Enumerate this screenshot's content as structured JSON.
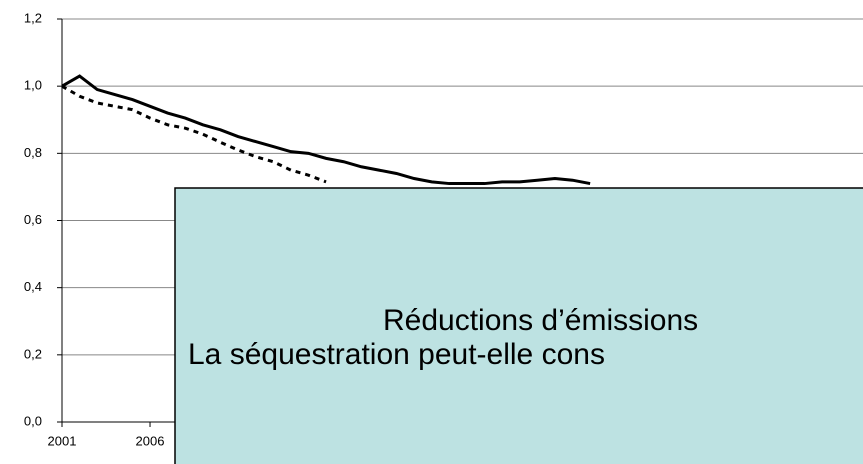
{
  "chart_data": {
    "type": "line",
    "x": [
      2001,
      2002,
      2003,
      2004,
      2005,
      2006,
      2007,
      2008,
      2009,
      2010,
      2011,
      2012,
      2013,
      2014,
      2015,
      2016,
      2017,
      2018,
      2019,
      2020,
      2021,
      2022,
      2023,
      2024,
      2025,
      2026,
      2027,
      2028,
      2029,
      2030,
      2031
    ],
    "series": [
      {
        "color": "#000000",
        "line_style": "solid",
        "values": [
          1.0,
          1.03,
          0.99,
          0.975,
          0.96,
          0.94,
          0.92,
          0.905,
          0.885,
          0.87,
          0.85,
          0.835,
          0.82,
          0.805,
          0.8,
          0.785,
          0.775,
          0.76,
          0.75,
          0.74,
          0.725,
          0.715,
          0.71,
          0.71,
          0.71,
          0.715,
          0.715,
          0.72,
          0.725,
          0.72,
          0.71
        ]
      },
      {
        "color": "#000000",
        "line_style": "dashed",
        "values": [
          1.0,
          0.97,
          0.95,
          0.94,
          0.93,
          0.905,
          0.885,
          0.875,
          0.857,
          0.833,
          0.81,
          0.79,
          0.775,
          0.75,
          0.735,
          0.715,
          null,
          null,
          null,
          null,
          null,
          null,
          null,
          null,
          null,
          null,
          null,
          null,
          null,
          null,
          null
        ]
      }
    ],
    "xlim": [
      2001,
      2046.5
    ],
    "xticks": [
      2001,
      2006
    ],
    "ylim": [
      0,
      1.2
    ],
    "yticks": [
      {
        "value": 0,
        "label": "0,0"
      },
      {
        "value": 0.2,
        "label": "0,2"
      },
      {
        "value": 0.4,
        "label": "0,4"
      },
      {
        "value": 0.6,
        "label": "0,6"
      },
      {
        "value": 0.8,
        "label": "0,8"
      },
      {
        "value": 1.0,
        "label": "1,0"
      },
      {
        "value": 1.2,
        "label": "1,2"
      }
    ],
    "grid": true,
    "annotations": [
      "Réductions d’émissions",
      "La séquestration peut-elle cons"
    ]
  }
}
